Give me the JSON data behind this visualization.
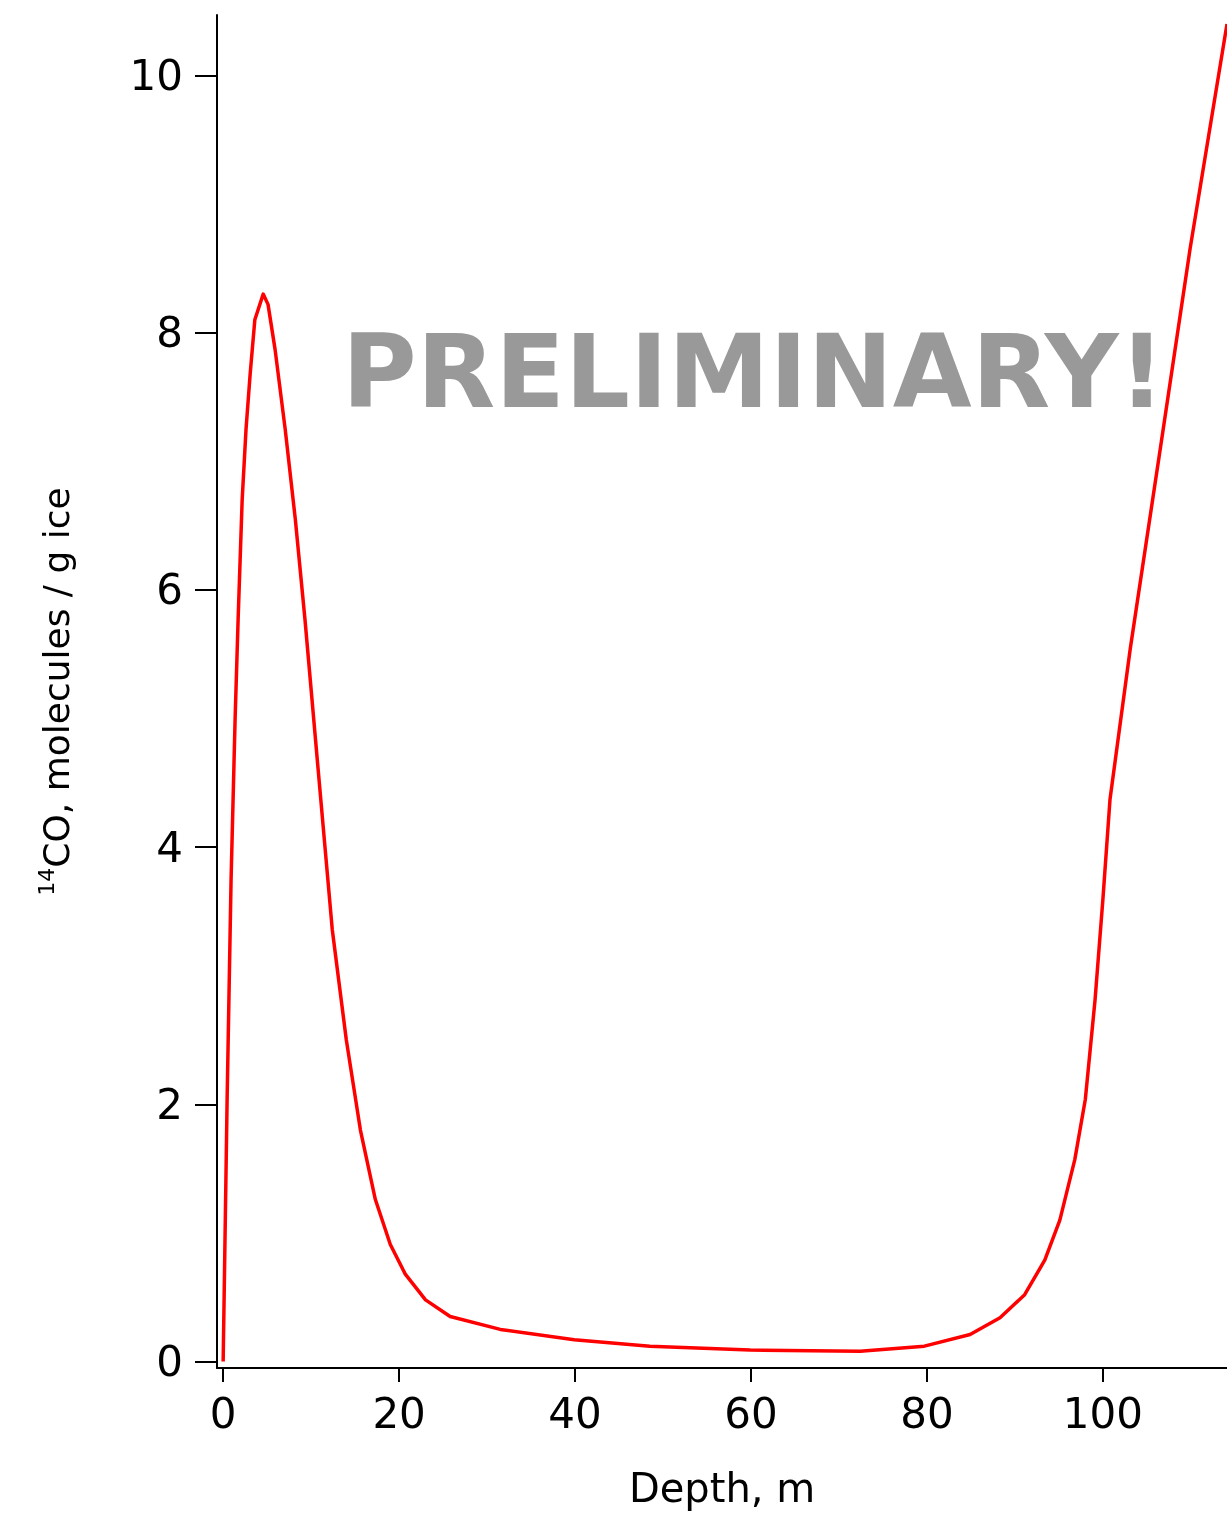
{
  "chart_data": {
    "type": "line",
    "xlabel": "Depth, m",
    "ylabel": "$^{14}$CO, molecules / g ice",
    "annotations": [
      "PRELIMINARY!"
    ],
    "xlim": [
      -0.7,
      114.1
    ],
    "ylim": [
      -0.05,
      10.47
    ],
    "xticks": [
      0,
      20,
      40,
      60,
      80,
      100
    ],
    "yticks": [
      0,
      2,
      4,
      6,
      8,
      10
    ],
    "grid": false,
    "marker": "none",
    "line_style": "solid",
    "series": [
      {
        "color": "#ff0000",
        "x": [
          0,
          0.45,
          0.9,
          1.36,
          1.7,
          2.16,
          2.6,
          3.07,
          3.6,
          4.55,
          5.1,
          5.9,
          7.05,
          8.2,
          9.3,
          10.8,
          12.4,
          14.0,
          15.6,
          17.3,
          19.0,
          20.7,
          23,
          25.8,
          31.5,
          39.9,
          48.5,
          59.9,
          72.4,
          79.7,
          84.9,
          88.3,
          91.1,
          93.4,
          95.1,
          96.8,
          98,
          99.1,
          100,
          100.8,
          103.1,
          106.5,
          109.9,
          114.1
        ],
        "values": [
          0,
          2.04,
          3.75,
          5.0,
          5.77,
          6.7,
          7.25,
          7.68,
          8.1,
          8.3,
          8.22,
          7.87,
          7.25,
          6.55,
          5.77,
          4.6,
          3.36,
          2.5,
          1.8,
          1.26,
          0.91,
          0.68,
          0.48,
          0.35,
          0.25,
          0.17,
          0.12,
          0.09,
          0.08,
          0.12,
          0.21,
          0.34,
          0.52,
          0.79,
          1.1,
          1.57,
          2.04,
          2.81,
          3.6,
          4.37,
          5.54,
          7.09,
          8.65,
          10.4
        ]
      }
    ]
  }
}
